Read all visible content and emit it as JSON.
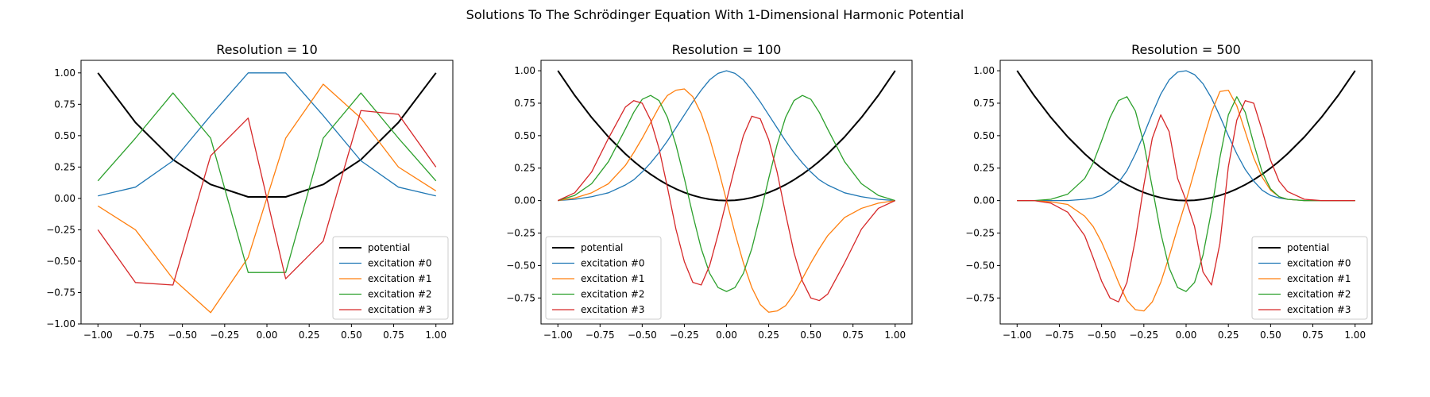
{
  "figure": {
    "suptitle": "Solutions To The Schrödinger Equation With 1-Dimensional Harmonic Potential"
  },
  "colors": {
    "potential": "#000000",
    "excitation_0": "#1f77b4",
    "excitation_1": "#ff7f0e",
    "excitation_2": "#2ca02c",
    "excitation_3": "#d62728"
  },
  "chart_data": [
    {
      "type": "line",
      "title": "Resolution = 10",
      "xlim": [
        -1.1,
        1.1
      ],
      "ylim": [
        -1.0,
        1.1
      ],
      "xticks": [
        -1.0,
        -0.75,
        -0.5,
        -0.25,
        0.0,
        0.25,
        0.5,
        0.75,
        1.0
      ],
      "xtick_labels": [
        "−1.00",
        "−0.75",
        "−0.50",
        "−0.25",
        "0.00",
        "0.25",
        "0.50",
        "0.75",
        "1.00"
      ],
      "yticks": [
        -1.0,
        -0.75,
        -0.5,
        -0.25,
        0.0,
        0.25,
        0.5,
        0.75,
        1.0
      ],
      "ytick_labels": [
        "−1.00",
        "−0.75",
        "−0.50",
        "−0.25",
        "0.00",
        "0.25",
        "0.50",
        "0.75",
        "1.00"
      ],
      "legend_position": "lower-right",
      "x": [
        -1.0,
        -0.778,
        -0.556,
        -0.333,
        -0.111,
        0.111,
        0.333,
        0.556,
        0.778,
        1.0
      ],
      "series": [
        {
          "name": "potential",
          "color_key": "potential",
          "values": [
            1.0,
            0.605,
            0.309,
            0.111,
            0.012,
            0.012,
            0.111,
            0.309,
            0.605,
            1.0
          ]
        },
        {
          "name": "excitation #0",
          "color_key": "excitation_0",
          "values": [
            0.02,
            0.09,
            0.3,
            0.66,
            1.0,
            1.0,
            0.66,
            0.3,
            0.09,
            0.02
          ]
        },
        {
          "name": "excitation #1",
          "color_key": "excitation_1",
          "values": [
            -0.06,
            -0.25,
            -0.64,
            -0.91,
            -0.47,
            0.48,
            0.91,
            0.64,
            0.25,
            0.06
          ]
        },
        {
          "name": "excitation #2",
          "color_key": "excitation_2",
          "values": [
            0.14,
            0.48,
            0.84,
            0.48,
            -0.59,
            -0.59,
            0.48,
            0.84,
            0.48,
            0.14
          ]
        },
        {
          "name": "excitation #3",
          "color_key": "excitation_3",
          "values": [
            -0.25,
            -0.67,
            -0.69,
            0.34,
            0.64,
            -0.64,
            -0.34,
            0.7,
            0.67,
            0.25
          ]
        }
      ]
    },
    {
      "type": "line",
      "title": "Resolution = 100",
      "xlim": [
        -1.1,
        1.1
      ],
      "ylim": [
        -0.95,
        1.08
      ],
      "xticks": [
        -1.0,
        -0.75,
        -0.5,
        -0.25,
        0.0,
        0.25,
        0.5,
        0.75,
        1.0
      ],
      "xtick_labels": [
        "−1.00",
        "−0.75",
        "−0.50",
        "−0.25",
        "0.00",
        "0.25",
        "0.50",
        "0.75",
        "1.00"
      ],
      "yticks": [
        -0.75,
        -0.5,
        -0.25,
        0.0,
        0.25,
        0.5,
        0.75,
        1.0
      ],
      "ytick_labels": [
        "−0.75",
        "−0.50",
        "−0.25",
        "0.00",
        "0.25",
        "0.50",
        "0.75",
        "1.00"
      ],
      "legend_position": "lower-left",
      "x": [
        -1.0,
        -0.9,
        -0.8,
        -0.7,
        -0.6,
        -0.55,
        -0.5,
        -0.45,
        -0.4,
        -0.35,
        -0.3,
        -0.25,
        -0.2,
        -0.15,
        -0.1,
        -0.05,
        0.0,
        0.05,
        0.1,
        0.15,
        0.2,
        0.25,
        0.3,
        0.35,
        0.4,
        0.45,
        0.5,
        0.55,
        0.6,
        0.7,
        0.8,
        0.9,
        1.0
      ],
      "series": [
        {
          "name": "potential",
          "color_key": "potential",
          "values": [
            1.0,
            0.81,
            0.64,
            0.49,
            0.36,
            0.3025,
            0.25,
            0.2025,
            0.16,
            0.1225,
            0.09,
            0.0625,
            0.04,
            0.0225,
            0.01,
            0.0025,
            0.0,
            0.0025,
            0.01,
            0.0225,
            0.04,
            0.0625,
            0.09,
            0.1225,
            0.16,
            0.2025,
            0.25,
            0.3025,
            0.36,
            0.49,
            0.64,
            0.81,
            1.0
          ]
        },
        {
          "name": "excitation #0",
          "color_key": "excitation_0",
          "values": [
            0.0,
            0.01,
            0.03,
            0.06,
            0.12,
            0.16,
            0.22,
            0.29,
            0.37,
            0.46,
            0.56,
            0.66,
            0.76,
            0.85,
            0.93,
            0.98,
            1.0,
            0.98,
            0.93,
            0.85,
            0.76,
            0.66,
            0.56,
            0.46,
            0.37,
            0.29,
            0.22,
            0.16,
            0.12,
            0.06,
            0.03,
            0.01,
            0.0
          ]
        },
        {
          "name": "excitation #1",
          "color_key": "excitation_1",
          "values": [
            0.0,
            0.02,
            0.06,
            0.13,
            0.27,
            0.37,
            0.48,
            0.6,
            0.72,
            0.81,
            0.85,
            0.86,
            0.8,
            0.67,
            0.48,
            0.25,
            0.0,
            -0.25,
            -0.48,
            -0.67,
            -0.8,
            -0.86,
            -0.85,
            -0.81,
            -0.72,
            -0.6,
            -0.48,
            -0.37,
            -0.27,
            -0.13,
            -0.06,
            -0.02,
            0.0
          ]
        },
        {
          "name": "excitation #2",
          "color_key": "excitation_2",
          "values": [
            0.0,
            0.04,
            0.13,
            0.3,
            0.55,
            0.68,
            0.78,
            0.81,
            0.77,
            0.64,
            0.43,
            0.17,
            -0.11,
            -0.37,
            -0.56,
            -0.67,
            -0.7,
            -0.67,
            -0.56,
            -0.37,
            -0.11,
            0.17,
            0.43,
            0.64,
            0.77,
            0.81,
            0.78,
            0.68,
            0.55,
            0.3,
            0.13,
            0.04,
            0.0
          ]
        },
        {
          "name": "excitation #3",
          "color_key": "excitation_3",
          "values": [
            0.0,
            0.06,
            0.22,
            0.48,
            0.72,
            0.77,
            0.75,
            0.62,
            0.4,
            0.1,
            -0.22,
            -0.47,
            -0.63,
            -0.65,
            -0.5,
            -0.26,
            0.0,
            0.26,
            0.5,
            0.65,
            0.63,
            0.47,
            0.22,
            -0.1,
            -0.4,
            -0.62,
            -0.75,
            -0.77,
            -0.72,
            -0.48,
            -0.22,
            -0.06,
            0.0
          ]
        }
      ]
    },
    {
      "type": "line",
      "title": "Resolution = 500",
      "xlim": [
        -1.1,
        1.1
      ],
      "ylim": [
        -0.95,
        1.08
      ],
      "xticks": [
        -1.0,
        -0.75,
        -0.5,
        -0.25,
        0.0,
        0.25,
        0.5,
        0.75,
        1.0
      ],
      "xtick_labels": [
        "−1.00",
        "−0.75",
        "−0.50",
        "−0.25",
        "0.00",
        "0.25",
        "0.50",
        "0.75",
        "1.00"
      ],
      "yticks": [
        -0.75,
        -0.5,
        -0.25,
        0.0,
        0.25,
        0.5,
        0.75,
        1.0
      ],
      "ytick_labels": [
        "−0.75",
        "−0.50",
        "−0.25",
        "0.00",
        "0.25",
        "0.50",
        "0.75",
        "1.00"
      ],
      "legend_position": "lower-right",
      "x": [
        -1.0,
        -0.9,
        -0.8,
        -0.7,
        -0.6,
        -0.55,
        -0.5,
        -0.45,
        -0.4,
        -0.35,
        -0.3,
        -0.25,
        -0.2,
        -0.15,
        -0.1,
        -0.05,
        0.0,
        0.05,
        0.1,
        0.15,
        0.2,
        0.25,
        0.3,
        0.35,
        0.4,
        0.45,
        0.5,
        0.55,
        0.6,
        0.7,
        0.8,
        0.9,
        1.0
      ],
      "series": [
        {
          "name": "potential",
          "color_key": "potential",
          "values": [
            1.0,
            0.81,
            0.64,
            0.49,
            0.36,
            0.3025,
            0.25,
            0.2025,
            0.16,
            0.1225,
            0.09,
            0.0625,
            0.04,
            0.0225,
            0.01,
            0.0025,
            0.0,
            0.0025,
            0.01,
            0.0225,
            0.04,
            0.0625,
            0.09,
            0.1225,
            0.16,
            0.2025,
            0.25,
            0.3025,
            0.36,
            0.49,
            0.64,
            0.81,
            1.0
          ]
        },
        {
          "name": "excitation #0",
          "color_key": "excitation_0",
          "values": [
            0.0,
            0.0,
            0.0,
            0.0,
            0.01,
            0.02,
            0.04,
            0.08,
            0.14,
            0.23,
            0.36,
            0.51,
            0.67,
            0.82,
            0.93,
            0.99,
            1.0,
            0.97,
            0.9,
            0.79,
            0.65,
            0.5,
            0.36,
            0.24,
            0.15,
            0.08,
            0.04,
            0.02,
            0.01,
            0.0,
            0.0,
            0.0,
            0.0
          ]
        },
        {
          "name": "excitation #1",
          "color_key": "excitation_1",
          "values": [
            0.0,
            0.0,
            -0.01,
            -0.03,
            -0.12,
            -0.2,
            -0.32,
            -0.47,
            -0.63,
            -0.77,
            -0.84,
            -0.85,
            -0.78,
            -0.63,
            -0.43,
            -0.21,
            0.0,
            0.23,
            0.46,
            0.68,
            0.84,
            0.85,
            0.73,
            0.53,
            0.33,
            0.18,
            0.08,
            0.03,
            0.01,
            0.0,
            0.0,
            0.0,
            0.0
          ]
        },
        {
          "name": "excitation #2",
          "color_key": "excitation_2",
          "values": [
            0.0,
            0.0,
            0.01,
            0.05,
            0.17,
            0.29,
            0.46,
            0.64,
            0.77,
            0.8,
            0.69,
            0.44,
            0.1,
            -0.25,
            -0.52,
            -0.67,
            -0.7,
            -0.63,
            -0.42,
            -0.08,
            0.33,
            0.66,
            0.8,
            0.68,
            0.44,
            0.22,
            0.09,
            0.03,
            0.01,
            0.0,
            0.0,
            0.0,
            0.0
          ]
        },
        {
          "name": "excitation #3",
          "color_key": "excitation_3",
          "values": [
            0.0,
            0.0,
            -0.02,
            -0.09,
            -0.27,
            -0.44,
            -0.62,
            -0.75,
            -0.78,
            -0.63,
            -0.3,
            0.12,
            0.48,
            0.66,
            0.53,
            0.17,
            0.0,
            -0.2,
            -0.55,
            -0.65,
            -0.33,
            0.26,
            0.62,
            0.77,
            0.75,
            0.54,
            0.31,
            0.15,
            0.07,
            0.01,
            0.0,
            0.0,
            0.0
          ]
        }
      ]
    }
  ]
}
